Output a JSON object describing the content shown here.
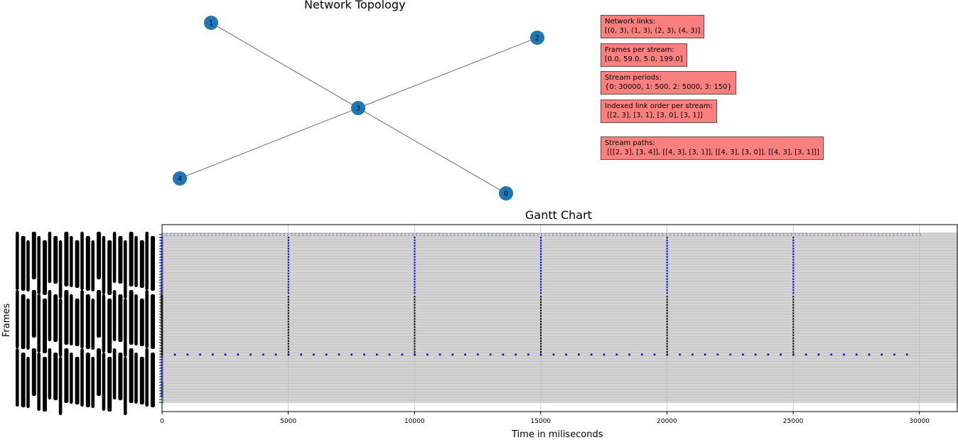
{
  "topology": {
    "title": "Network  Topology",
    "nodes": [
      {
        "id": "0",
        "label": "0"
      },
      {
        "id": "1",
        "label": "1"
      },
      {
        "id": "2",
        "label": "2"
      },
      {
        "id": "3",
        "label": "3"
      },
      {
        "id": "4",
        "label": "4"
      }
    ],
    "edges": [
      [
        "0",
        "3"
      ],
      [
        "1",
        "3"
      ],
      [
        "2",
        "3"
      ],
      [
        "4",
        "3"
      ]
    ],
    "node_color": "#1f77b4",
    "edge_color": "#808080"
  },
  "info_boxes": [
    {
      "heading": "Network links:",
      "value": "[(0, 3), (1, 3), (2, 3), (4, 3)]"
    },
    {
      "heading": "Frames per stream:",
      "value": "[0.0, 59.0, 5.0, 199.0]"
    },
    {
      "heading": "Stream periods:",
      "value": "{0: 30000, 1: 500, 2: 5000, 3: 150}"
    },
    {
      "heading": "Indexed link order per stream:",
      "value": " [[2, 3], [3, 1], [3, 0], [3, 1]]"
    },
    {
      "heading": "Stream paths:",
      "value": " [[[2, 3], [3, 4]], [[4, 3], [3, 1]], [[4, 3], [3, 0]], [[4, 3], [3, 1]]]"
    }
  ],
  "info_box_color": "#fa7f7f",
  "chart_data": {
    "type": "gantt",
    "title": "Gantt Chart",
    "xlabel": "Time in miliseconds",
    "ylabel": "Frames",
    "xlim": [
      0,
      31500
    ],
    "xticks": [
      0,
      5000,
      10000,
      15000,
      20000,
      25000,
      30000
    ],
    "grid": true,
    "background_color": "#d3d3d3",
    "series": [
      {
        "color": "#ff4d4d",
        "period": 150,
        "x_start": 0,
        "x_end": 30000,
        "rows": "top"
      },
      {
        "color": "#0000ff",
        "period": 5000,
        "x_start": 0,
        "x_end": 25000,
        "rows": "upper-middle"
      },
      {
        "color": "#000000",
        "period": 5000,
        "x_start": 0,
        "x_end": 25000,
        "rows": "lower-middle"
      },
      {
        "color": "#0000ff",
        "period": 500,
        "x_start": 500,
        "x_end": 29500,
        "rows": "band"
      },
      {
        "color": "#1a9a1a",
        "period": 30000,
        "x_start": 0,
        "x_end": 0,
        "rows": "bottom"
      }
    ]
  }
}
